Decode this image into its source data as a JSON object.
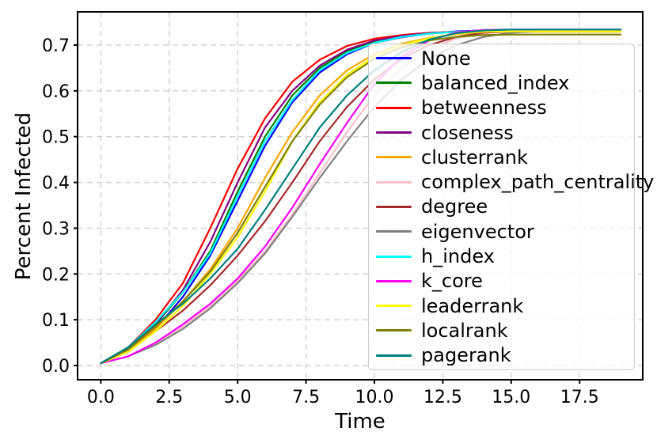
{
  "chart_data": {
    "type": "line",
    "title": "",
    "xlabel": "Time",
    "ylabel": "Percent Infected",
    "grid": true,
    "legend_position": "center right",
    "xlim": [
      -0.93,
      19.83
    ],
    "ylim": [
      -0.031,
      0.772
    ],
    "xticks": [
      0.0,
      2.5,
      5.0,
      7.5,
      10.0,
      12.5,
      15.0,
      17.5
    ],
    "xtick_labels": [
      "0.0",
      "2.5",
      "5.0",
      "7.5",
      "10.0",
      "12.5",
      "15.0",
      "17.5"
    ],
    "yticks": [
      0.0,
      0.1,
      0.2,
      0.3,
      0.4,
      0.5,
      0.6,
      0.7
    ],
    "ytick_labels": [
      "0.0",
      "0.1",
      "0.2",
      "0.3",
      "0.4",
      "0.5",
      "0.6",
      "0.7"
    ],
    "x": [
      0,
      1,
      2,
      3,
      4,
      5,
      6,
      7,
      8,
      9,
      10,
      11,
      12,
      13,
      14,
      15,
      16,
      17,
      18,
      19
    ],
    "series": [
      {
        "name": "None",
        "color": "#0000ff",
        "values": [
          0.005,
          0.03,
          0.08,
          0.15,
          0.24,
          0.36,
          0.48,
          0.575,
          0.64,
          0.68,
          0.705,
          0.717,
          0.725,
          0.73,
          0.732,
          0.733,
          0.733,
          0.733,
          0.733,
          0.733
        ]
      },
      {
        "name": "balanced_index",
        "color": "#008000",
        "values": [
          0.005,
          0.035,
          0.09,
          0.16,
          0.25,
          0.38,
          0.5,
          0.59,
          0.65,
          0.686,
          0.707,
          0.719,
          0.726,
          0.729,
          0.73,
          0.73,
          0.73,
          0.73,
          0.73,
          0.73
        ]
      },
      {
        "name": "betweenness",
        "color": "#ff0000",
        "values": [
          0.005,
          0.04,
          0.1,
          0.18,
          0.3,
          0.43,
          0.54,
          0.62,
          0.668,
          0.698,
          0.714,
          0.722,
          0.727,
          0.729,
          0.73,
          0.73,
          0.73,
          0.73,
          0.73,
          0.73
        ]
      },
      {
        "name": "closeness",
        "color": "#800080",
        "values": [
          0.005,
          0.035,
          0.09,
          0.165,
          0.27,
          0.4,
          0.52,
          0.6,
          0.655,
          0.69,
          0.71,
          0.72,
          0.726,
          0.729,
          0.73,
          0.73,
          0.73,
          0.73,
          0.73,
          0.73
        ]
      },
      {
        "name": "clusterrank",
        "color": "#ffa500",
        "values": [
          0.005,
          0.03,
          0.08,
          0.14,
          0.21,
          0.3,
          0.41,
          0.51,
          0.59,
          0.645,
          0.68,
          0.703,
          0.716,
          0.724,
          0.728,
          0.729,
          0.729,
          0.729,
          0.729,
          0.729
        ]
      },
      {
        "name": "complex_path_centrality",
        "color": "#ffc0cb",
        "values": [
          0.005,
          0.02,
          0.05,
          0.085,
          0.13,
          0.185,
          0.25,
          0.33,
          0.42,
          0.51,
          0.59,
          0.65,
          0.69,
          0.715,
          0.726,
          0.73,
          0.731,
          0.731,
          0.731,
          0.731
        ]
      },
      {
        "name": "degree",
        "color": "#a52a2a",
        "values": [
          0.005,
          0.03,
          0.075,
          0.12,
          0.175,
          0.24,
          0.315,
          0.4,
          0.49,
          0.565,
          0.625,
          0.67,
          0.7,
          0.718,
          0.727,
          0.73,
          0.731,
          0.731,
          0.731,
          0.731
        ]
      },
      {
        "name": "eigenvector",
        "color": "#808080",
        "values": [
          0.005,
          0.02,
          0.045,
          0.08,
          0.125,
          0.18,
          0.245,
          0.325,
          0.41,
          0.49,
          0.565,
          0.625,
          0.67,
          0.7,
          0.718,
          0.727,
          0.73,
          0.73,
          0.73,
          0.73
        ]
      },
      {
        "name": "h_index",
        "color": "#00ffff",
        "values": [
          0.005,
          0.04,
          0.095,
          0.16,
          0.245,
          0.37,
          0.49,
          0.58,
          0.645,
          0.683,
          0.705,
          0.718,
          0.725,
          0.729,
          0.731,
          0.731,
          0.731,
          0.731,
          0.731,
          0.731
        ]
      },
      {
        "name": "k_core",
        "color": "#ff00ff",
        "values": [
          0.005,
          0.02,
          0.05,
          0.09,
          0.135,
          0.19,
          0.26,
          0.345,
          0.44,
          0.53,
          0.615,
          0.675,
          0.71,
          0.728,
          0.733,
          0.734,
          0.734,
          0.734,
          0.734,
          0.734
        ]
      },
      {
        "name": "leaderrank",
        "color": "#ffff00",
        "values": [
          0.005,
          0.03,
          0.075,
          0.13,
          0.2,
          0.28,
          0.38,
          0.49,
          0.575,
          0.635,
          0.675,
          0.7,
          0.715,
          0.725,
          0.729,
          0.73,
          0.73,
          0.73,
          0.73,
          0.73
        ]
      },
      {
        "name": "localrank",
        "color": "#808000",
        "values": [
          0.005,
          0.035,
          0.085,
          0.14,
          0.205,
          0.29,
          0.39,
          0.49,
          0.57,
          0.63,
          0.67,
          0.695,
          0.71,
          0.718,
          0.722,
          0.723,
          0.723,
          0.723,
          0.723,
          0.723
        ]
      },
      {
        "name": "pagerank",
        "color": "#008080",
        "values": [
          0.005,
          0.04,
          0.09,
          0.135,
          0.19,
          0.255,
          0.34,
          0.43,
          0.52,
          0.59,
          0.645,
          0.685,
          0.712,
          0.726,
          0.732,
          0.734,
          0.734,
          0.734,
          0.734,
          0.734
        ]
      }
    ]
  },
  "styles": {
    "grid_color": "#cfcfcf",
    "spine_color": "#000000",
    "tick_color": "#000000",
    "text_color": "#000000",
    "legend_border": "#cccccc",
    "legend_bg": "rgba(255,255,255,0.8)"
  }
}
